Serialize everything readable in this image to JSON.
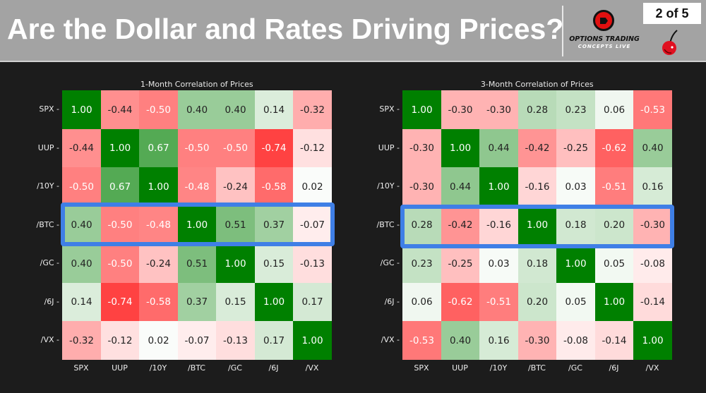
{
  "header": {
    "title": "Are the Dollar and Rates Driving Prices?",
    "page_indicator": "2 of 5",
    "logo_line1": "OPTIONS TRADING",
    "logo_line2": "CONCEPTS LIVE"
  },
  "colors": {
    "negative": "#ff0000",
    "zero": "#ffffff",
    "positive": "#008000",
    "highlight": "#3f7fe6"
  },
  "chart_data": [
    {
      "type": "heatmap",
      "title": "1-Month Correlation of Prices",
      "labels": [
        "SPX",
        "UUP",
        "/10Y",
        "/BTC",
        "/GC",
        "/6J",
        "/VX"
      ],
      "highlighted_row": "/BTC",
      "range": [
        -1,
        1
      ],
      "values": [
        [
          1.0,
          -0.44,
          -0.5,
          0.4,
          0.4,
          0.14,
          -0.32
        ],
        [
          -0.44,
          1.0,
          0.67,
          -0.5,
          -0.5,
          -0.74,
          -0.12
        ],
        [
          -0.5,
          0.67,
          1.0,
          -0.48,
          -0.24,
          -0.58,
          0.02
        ],
        [
          0.4,
          -0.5,
          -0.48,
          1.0,
          0.51,
          0.37,
          -0.07
        ],
        [
          0.4,
          -0.5,
          -0.24,
          0.51,
          1.0,
          0.15,
          -0.13
        ],
        [
          0.14,
          -0.74,
          -0.58,
          0.37,
          0.15,
          1.0,
          0.17
        ],
        [
          -0.32,
          -0.12,
          0.02,
          -0.07,
          -0.13,
          0.17,
          1.0
        ]
      ]
    },
    {
      "type": "heatmap",
      "title": "3-Month Correlation of Prices",
      "labels": [
        "SPX",
        "UUP",
        "/10Y",
        "/BTC",
        "/GC",
        "/6J",
        "/VX"
      ],
      "highlighted_row": "/BTC",
      "range": [
        -1,
        1
      ],
      "values": [
        [
          1.0,
          -0.3,
          -0.3,
          0.28,
          0.23,
          0.06,
          -0.53
        ],
        [
          -0.3,
          1.0,
          0.44,
          -0.42,
          -0.25,
          -0.62,
          0.4
        ],
        [
          -0.3,
          0.44,
          1.0,
          -0.16,
          0.03,
          -0.51,
          0.16
        ],
        [
          0.28,
          -0.42,
          -0.16,
          1.0,
          0.18,
          0.2,
          -0.3
        ],
        [
          0.23,
          -0.25,
          0.03,
          0.18,
          1.0,
          0.05,
          -0.08
        ],
        [
          0.06,
          -0.62,
          -0.51,
          0.2,
          0.05,
          1.0,
          -0.14
        ],
        [
          -0.53,
          0.4,
          0.16,
          -0.3,
          -0.08,
          -0.14,
          1.0
        ]
      ]
    }
  ]
}
